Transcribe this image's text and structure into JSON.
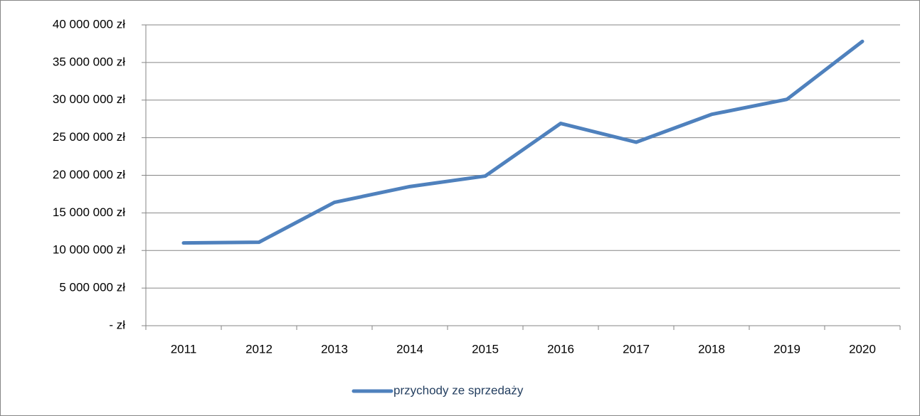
{
  "chart_data": {
    "type": "line",
    "categories": [
      "2011",
      "2012",
      "2013",
      "2014",
      "2015",
      "2016",
      "2017",
      "2018",
      "2019",
      "2020"
    ],
    "series": [
      {
        "name": "przychody ze sprzedaży",
        "color": "#4f81bd",
        "values": [
          11000000,
          11100000,
          16400000,
          18500000,
          19900000,
          26900000,
          24400000,
          28100000,
          30100000,
          37800000
        ]
      }
    ],
    "ylim": [
      0,
      40000000
    ],
    "yticks": [
      {
        "value": 0,
        "label": "- zł"
      },
      {
        "value": 5000000,
        "label": "5 000 000 zł"
      },
      {
        "value": 10000000,
        "label": "10 000 000 zł"
      },
      {
        "value": 15000000,
        "label": "15 000 000 zł"
      },
      {
        "value": 20000000,
        "label": "20 000 000 zł"
      },
      {
        "value": 25000000,
        "label": "25 000 000 zł"
      },
      {
        "value": 30000000,
        "label": "30 000 000 zł"
      },
      {
        "value": 35000000,
        "label": "35 000 000 zł"
      },
      {
        "value": 40000000,
        "label": "40 000 000 zł"
      }
    ],
    "grid": true,
    "legend": "bottom"
  }
}
